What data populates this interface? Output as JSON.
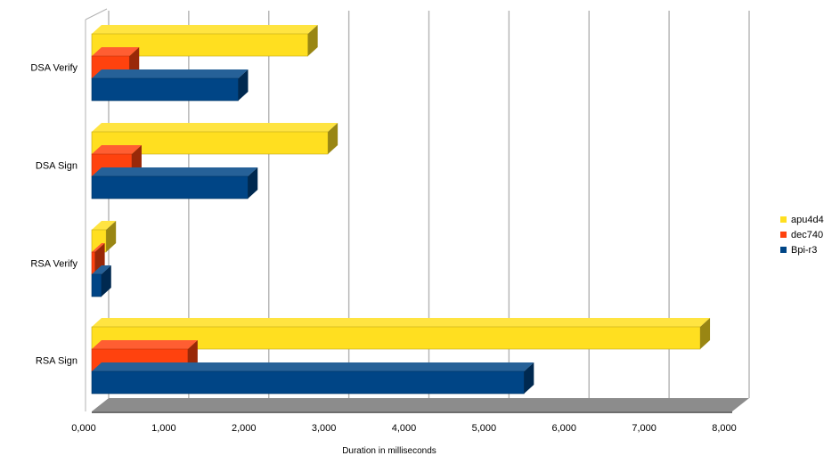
{
  "chart_data": {
    "type": "bar",
    "orientation": "horizontal",
    "style": "3d",
    "categories": [
      "RSA Sign",
      "RSA Verify",
      "DSA Sign",
      "DSA Verify"
    ],
    "series": [
      {
        "name": "apu4d4",
        "color": "#ffdf20",
        "values": [
          7600,
          180,
          2950,
          2700
        ]
      },
      {
        "name": "dec740",
        "color": "#ff420e",
        "values": [
          1200,
          40,
          500,
          470
        ]
      },
      {
        "name": "Bpi-r3",
        "color": "#004586",
        "values": [
          5400,
          120,
          1950,
          1830
        ]
      }
    ],
    "xlabel": "Duration in milliseconds",
    "ylabel": "",
    "xlim": [
      0,
      8000
    ],
    "xticks": [
      0,
      1000,
      2000,
      3000,
      4000,
      5000,
      6000,
      7000,
      8000
    ],
    "tick_labels": [
      "0,000",
      "1,000",
      "2,000",
      "3,000",
      "4,000",
      "5,000",
      "6,000",
      "7,000",
      "8,000"
    ],
    "grid": true,
    "legend_position": "right"
  }
}
